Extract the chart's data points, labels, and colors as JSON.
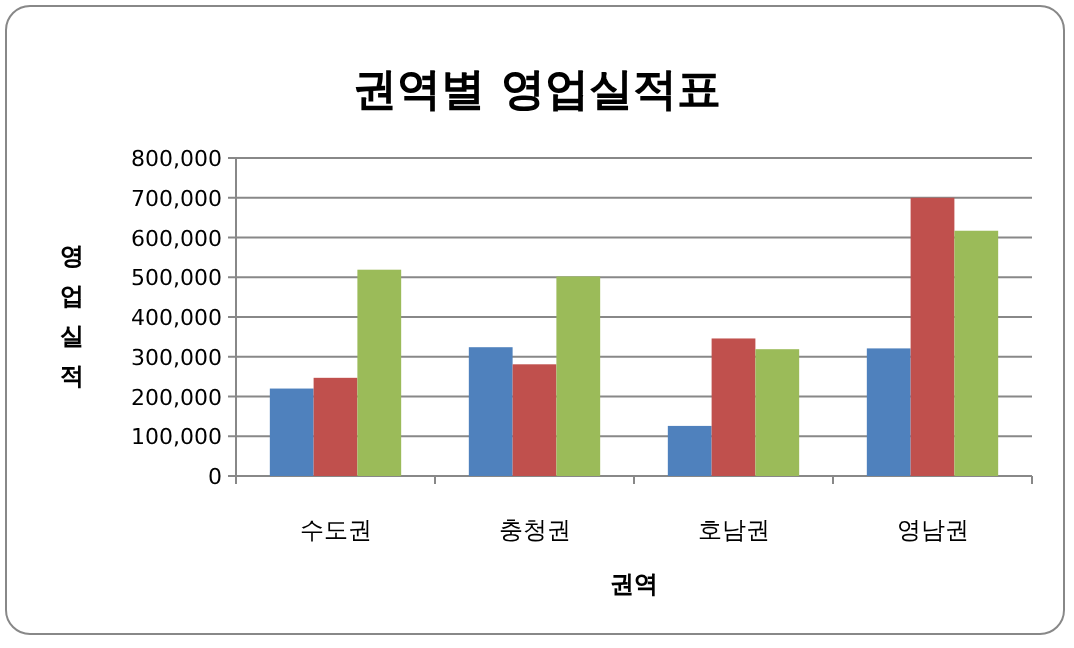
{
  "chart_data": {
    "type": "bar",
    "title": "권역별 영업실적표",
    "xlabel": "권역",
    "ylabel": "영업실적",
    "categories": [
      "수도권",
      "충청권",
      "호남권",
      "영남권"
    ],
    "series": [
      {
        "color": "#4f81bd",
        "values": [
          220000,
          324000,
          126000,
          321000
        ]
      },
      {
        "color": "#c0504d",
        "values": [
          247000,
          281000,
          346000,
          700000
        ]
      },
      {
        "color": "#9bbb59",
        "values": [
          519000,
          502000,
          319000,
          617000
        ]
      }
    ],
    "ylim": [
      0,
      800000
    ],
    "yticks": [
      {
        "value": 0,
        "label": "0"
      },
      {
        "value": 100000,
        "label": "100,000"
      },
      {
        "value": 200000,
        "label": "200,000"
      },
      {
        "value": 300000,
        "label": "300,000"
      },
      {
        "value": 400000,
        "label": "400,000"
      },
      {
        "value": 500000,
        "label": "500,000"
      },
      {
        "value": 600000,
        "label": "600,000"
      },
      {
        "value": 700000,
        "label": "700,000"
      },
      {
        "value": 800000,
        "label": "800,000"
      }
    ],
    "grid": "y"
  }
}
